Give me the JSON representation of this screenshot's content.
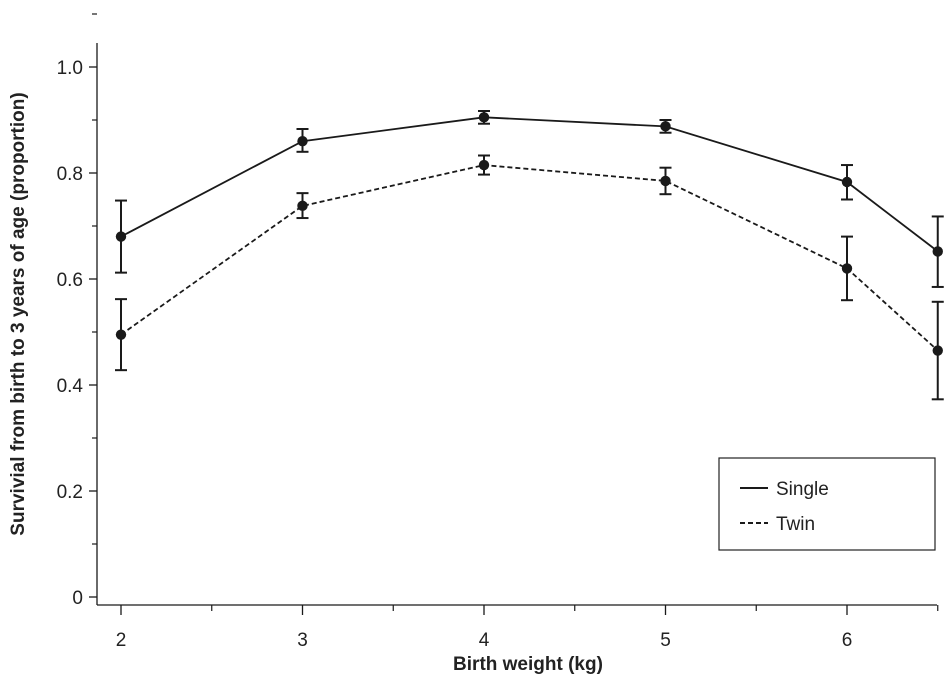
{
  "chart_data": {
    "type": "line",
    "title": "",
    "xlabel": "Birth weight (kg)",
    "ylabel": "Survivial from birth to 3 years of age (proportion)",
    "x": [
      2,
      3,
      4,
      5,
      6,
      6.5
    ],
    "xlim": [
      1.9,
      6.5
    ],
    "ylim": [
      0,
      1.0
    ],
    "x_ticks": [
      2,
      3,
      4,
      5,
      6
    ],
    "x_tick_labels": [
      "2",
      "3",
      "4",
      "5",
      "6"
    ],
    "y_ticks": [
      0,
      0.2,
      0.4,
      0.6,
      0.8,
      1.0
    ],
    "y_tick_labels": [
      "0",
      "0.2",
      "0.4",
      "0.6",
      "0.8",
      "1.0"
    ],
    "grid": false,
    "legend_position": "bottom-right",
    "series": [
      {
        "name": "Single",
        "line_style": "solid",
        "values": [
          0.68,
          0.86,
          0.905,
          0.888,
          0.783,
          0.652
        ],
        "error_low": [
          0.612,
          0.84,
          0.893,
          0.876,
          0.75,
          0.585
        ],
        "error_high": [
          0.748,
          0.883,
          0.917,
          0.9,
          0.815,
          0.718
        ]
      },
      {
        "name": "Twin",
        "line_style": "dashed",
        "values": [
          0.495,
          0.738,
          0.815,
          0.785,
          0.62,
          0.465
        ],
        "error_low": [
          0.428,
          0.715,
          0.797,
          0.76,
          0.56,
          0.373
        ],
        "error_high": [
          0.562,
          0.762,
          0.833,
          0.81,
          0.68,
          0.557
        ]
      }
    ]
  }
}
